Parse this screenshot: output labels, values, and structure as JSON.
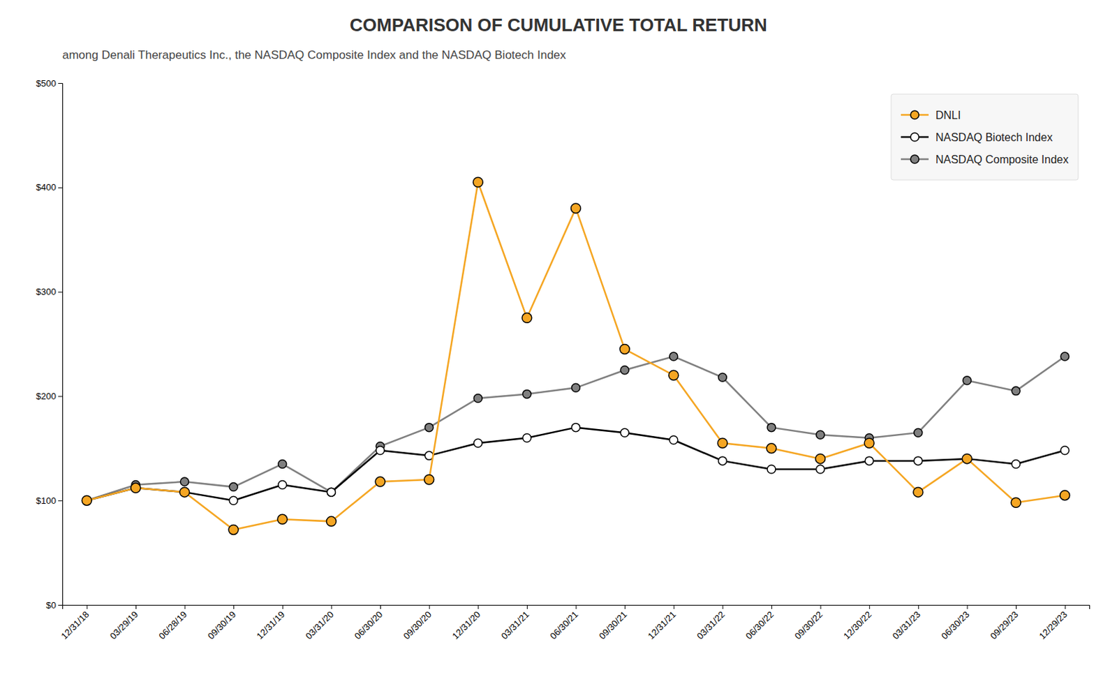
{
  "chart_data": {
    "type": "line",
    "title": "COMPARISON OF CUMULATIVE TOTAL RETURN",
    "subtitle": "among Denali Therapeutics Inc., the NASDAQ Composite Index and the NASDAQ Biotech Index",
    "categories": [
      "12/31/18",
      "03/29/19",
      "06/28/19",
      "09/30/19",
      "12/31/19",
      "03/31/20",
      "06/30/20",
      "09/30/20",
      "12/31/20",
      "03/31/21",
      "06/30/21",
      "09/30/21",
      "12/31/21",
      "03/31/22",
      "06/30/22",
      "09/30/22",
      "12/30/22",
      "03/31/23",
      "06/30/23",
      "09/29/23",
      "12/29/23"
    ],
    "series": [
      {
        "name": "DNLI",
        "color": "#F5A623",
        "marker": "circle",
        "values": [
          100,
          112,
          108,
          72,
          82,
          80,
          118,
          120,
          405,
          275,
          380,
          245,
          220,
          155,
          150,
          140,
          155,
          108,
          140,
          98,
          105
        ]
      },
      {
        "name": "NASDAQ Biotech Index",
        "color": "#000000",
        "marker": "open-circle",
        "values": [
          100,
          112,
          108,
          100,
          115,
          108,
          148,
          143,
          155,
          160,
          170,
          165,
          158,
          138,
          130,
          130,
          138,
          138,
          140,
          135,
          148
        ]
      },
      {
        "name": "NASDAQ Composite Index",
        "color": "#808080",
        "marker": "circle",
        "values": [
          100,
          115,
          118,
          113,
          135,
          108,
          152,
          170,
          198,
          202,
          208,
          225,
          238,
          218,
          170,
          163,
          160,
          165,
          215,
          205,
          238
        ]
      }
    ],
    "ylim": [
      0,
      500
    ],
    "yticks": [
      {
        "value": 0,
        "label": "$0"
      },
      {
        "value": 100,
        "label": "$100"
      },
      {
        "value": 200,
        "label": "$200"
      },
      {
        "value": 300,
        "label": "$300"
      },
      {
        "value": 400,
        "label": "$400"
      },
      {
        "value": 500,
        "label": "$500"
      }
    ],
    "grid": false,
    "legend": "upper right"
  }
}
